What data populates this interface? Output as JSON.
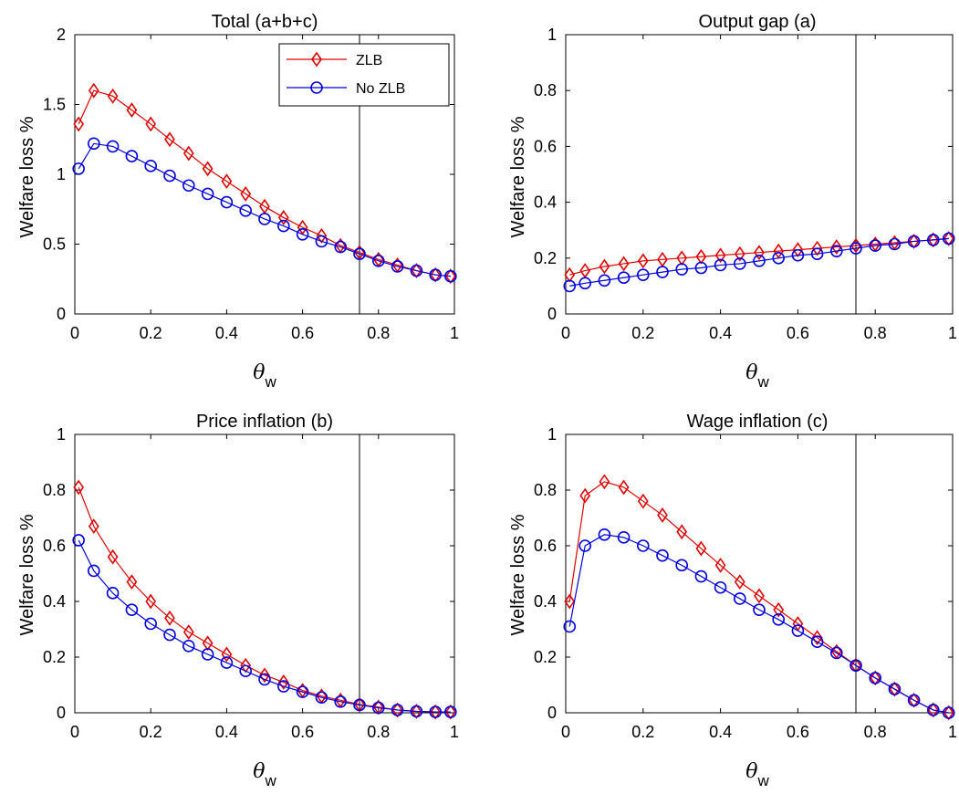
{
  "figure": {
    "legend": {
      "zlb": "ZLB",
      "nozlb": "No ZLB"
    },
    "colors": {
      "zlb": "#e00000",
      "nozlb": "#0000e0",
      "vline": "#000000"
    }
  },
  "chart_data": [
    {
      "type": "line",
      "title": "Total (a+b+c)",
      "xlabel": "θ",
      "xlabel_sub": "w",
      "ylabel": "Welfare loss %",
      "xlim": [
        0,
        1
      ],
      "ylim": [
        0,
        2
      ],
      "xticks": [
        "0",
        "0.2",
        "0.4",
        "0.6",
        "0.8",
        "1"
      ],
      "yticks": [
        "0",
        "0.5",
        "1",
        "1.5",
        "2"
      ],
      "vline": 0.75,
      "legend_position": "top-right",
      "x": [
        0.01,
        0.05,
        0.1,
        0.15,
        0.2,
        0.25,
        0.3,
        0.35,
        0.4,
        0.45,
        0.5,
        0.55,
        0.6,
        0.65,
        0.7,
        0.75,
        0.8,
        0.85,
        0.9,
        0.95,
        0.99
      ],
      "series": [
        {
          "name": "ZLB",
          "marker": "diamond",
          "values": [
            1.36,
            1.6,
            1.56,
            1.46,
            1.36,
            1.25,
            1.15,
            1.04,
            0.95,
            0.86,
            0.77,
            0.69,
            0.62,
            0.56,
            0.49,
            0.44,
            0.39,
            0.35,
            0.31,
            0.28,
            0.27
          ]
        },
        {
          "name": "No ZLB",
          "marker": "circle",
          "values": [
            1.04,
            1.22,
            1.2,
            1.13,
            1.06,
            0.99,
            0.92,
            0.86,
            0.8,
            0.74,
            0.68,
            0.63,
            0.57,
            0.52,
            0.48,
            0.43,
            0.38,
            0.34,
            0.31,
            0.28,
            0.27
          ]
        }
      ]
    },
    {
      "type": "line",
      "title": "Output gap (a)",
      "xlabel": "θ",
      "xlabel_sub": "w",
      "ylabel": "Welfare loss %",
      "xlim": [
        0,
        1
      ],
      "ylim": [
        0,
        1
      ],
      "xticks": [
        "0",
        "0.2",
        "0.4",
        "0.6",
        "0.8",
        "1"
      ],
      "yticks": [
        "0",
        "0.2",
        "0.4",
        "0.6",
        "0.8",
        "1"
      ],
      "vline": 0.75,
      "x": [
        0.01,
        0.05,
        0.1,
        0.15,
        0.2,
        0.25,
        0.3,
        0.35,
        0.4,
        0.45,
        0.5,
        0.55,
        0.6,
        0.65,
        0.7,
        0.75,
        0.8,
        0.85,
        0.9,
        0.95,
        0.99
      ],
      "series": [
        {
          "name": "ZLB",
          "marker": "diamond",
          "values": [
            0.14,
            0.155,
            0.17,
            0.18,
            0.19,
            0.195,
            0.2,
            0.205,
            0.21,
            0.215,
            0.22,
            0.225,
            0.23,
            0.235,
            0.24,
            0.245,
            0.25,
            0.255,
            0.26,
            0.265,
            0.27
          ]
        },
        {
          "name": "No ZLB",
          "marker": "circle",
          "values": [
            0.1,
            0.11,
            0.12,
            0.13,
            0.14,
            0.15,
            0.16,
            0.165,
            0.175,
            0.18,
            0.19,
            0.2,
            0.21,
            0.215,
            0.225,
            0.235,
            0.245,
            0.25,
            0.26,
            0.265,
            0.27
          ]
        }
      ]
    },
    {
      "type": "line",
      "title": "Price inflation (b)",
      "xlabel": "θ",
      "xlabel_sub": "w",
      "ylabel": "Welfare loss %",
      "xlim": [
        0,
        1
      ],
      "ylim": [
        0,
        1
      ],
      "xticks": [
        "0",
        "0.2",
        "0.4",
        "0.6",
        "0.8",
        "1"
      ],
      "yticks": [
        "0",
        "0.2",
        "0.4",
        "0.6",
        "0.8",
        "1"
      ],
      "vline": 0.75,
      "x": [
        0.01,
        0.05,
        0.1,
        0.15,
        0.2,
        0.25,
        0.3,
        0.35,
        0.4,
        0.45,
        0.5,
        0.55,
        0.6,
        0.65,
        0.7,
        0.75,
        0.8,
        0.85,
        0.9,
        0.95,
        0.99
      ],
      "series": [
        {
          "name": "ZLB",
          "marker": "diamond",
          "values": [
            0.81,
            0.67,
            0.56,
            0.47,
            0.4,
            0.34,
            0.29,
            0.25,
            0.21,
            0.17,
            0.135,
            0.11,
            0.08,
            0.06,
            0.045,
            0.03,
            0.02,
            0.01,
            0.005,
            0.003,
            0.003
          ]
        },
        {
          "name": "No ZLB",
          "marker": "circle",
          "values": [
            0.62,
            0.51,
            0.43,
            0.37,
            0.32,
            0.28,
            0.24,
            0.21,
            0.18,
            0.15,
            0.12,
            0.095,
            0.075,
            0.055,
            0.04,
            0.028,
            0.018,
            0.01,
            0.005,
            0.003,
            0.003
          ]
        }
      ]
    },
    {
      "type": "line",
      "title": "Wage inflation (c)",
      "xlabel": "θ",
      "xlabel_sub": "w",
      "ylabel": "Welfare loss %",
      "xlim": [
        0,
        1
      ],
      "ylim": [
        0,
        1
      ],
      "xticks": [
        "0",
        "0.2",
        "0.4",
        "0.6",
        "0.8",
        "1"
      ],
      "yticks": [
        "0",
        "0.2",
        "0.4",
        "0.6",
        "0.8",
        "1"
      ],
      "vline": 0.75,
      "x": [
        0.01,
        0.05,
        0.1,
        0.15,
        0.2,
        0.25,
        0.3,
        0.35,
        0.4,
        0.45,
        0.5,
        0.55,
        0.6,
        0.65,
        0.7,
        0.75,
        0.8,
        0.85,
        0.9,
        0.95,
        0.99
      ],
      "series": [
        {
          "name": "ZLB",
          "marker": "diamond",
          "values": [
            0.4,
            0.78,
            0.83,
            0.81,
            0.76,
            0.71,
            0.65,
            0.59,
            0.53,
            0.47,
            0.42,
            0.37,
            0.32,
            0.27,
            0.22,
            0.17,
            0.125,
            0.085,
            0.045,
            0.01,
            0.0
          ]
        },
        {
          "name": "No ZLB",
          "marker": "circle",
          "values": [
            0.31,
            0.6,
            0.64,
            0.63,
            0.6,
            0.565,
            0.53,
            0.49,
            0.45,
            0.41,
            0.37,
            0.335,
            0.295,
            0.255,
            0.215,
            0.17,
            0.125,
            0.085,
            0.045,
            0.01,
            0.0
          ]
        }
      ]
    }
  ]
}
